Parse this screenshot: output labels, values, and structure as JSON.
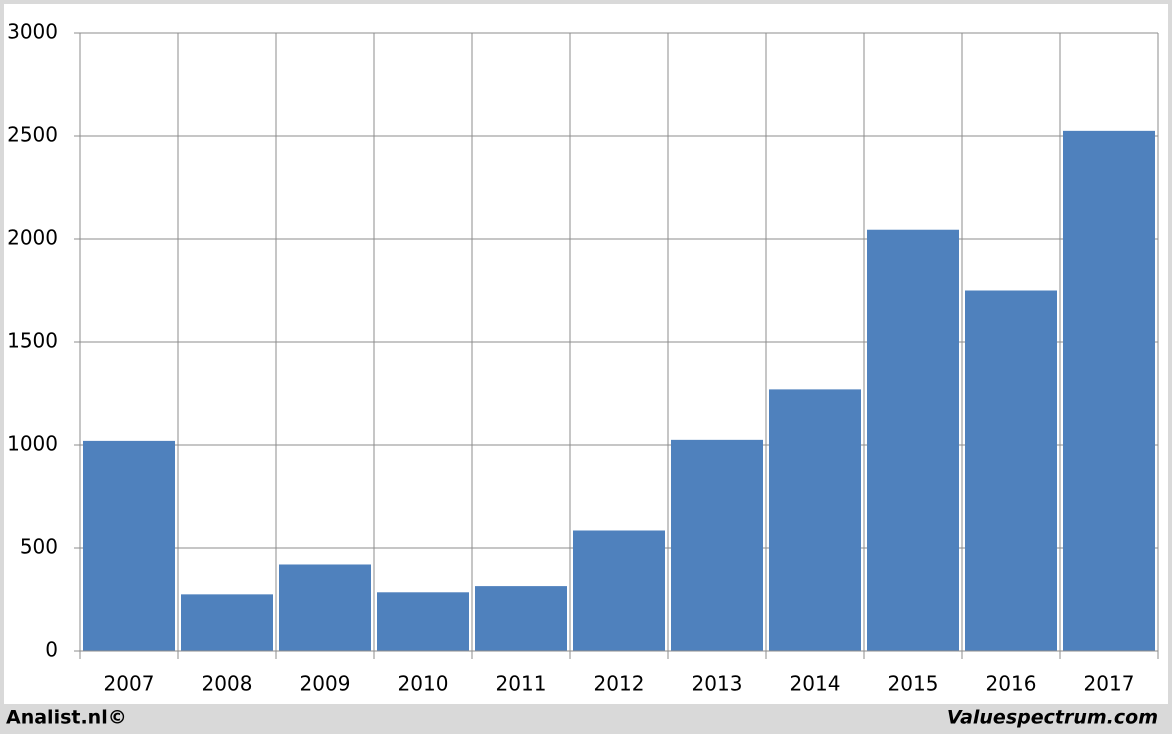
{
  "chart_data": {
    "type": "bar",
    "categories": [
      "2007",
      "2008",
      "2009",
      "2010",
      "2011",
      "2012",
      "2013",
      "2014",
      "2015",
      "2016",
      "2017"
    ],
    "values": [
      1020,
      275,
      420,
      285,
      315,
      585,
      1025,
      1270,
      2045,
      1750,
      2525
    ],
    "color": "#4f81bd",
    "ylim": [
      0,
      3000
    ],
    "yticks": [
      0,
      500,
      1000,
      1500,
      2000,
      2500,
      3000
    ],
    "grid": true,
    "credits": [
      "Analist.nl©",
      "Valuespectrum.com"
    ]
  }
}
